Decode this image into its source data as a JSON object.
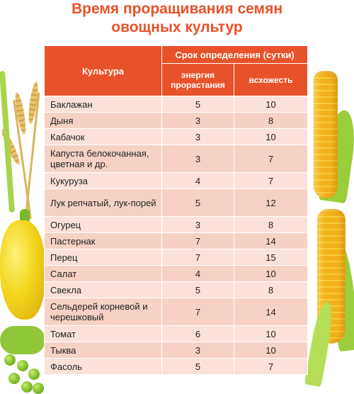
{
  "title": {
    "line1": "Время проращивания семян",
    "line2": "овощных культур"
  },
  "table": {
    "col_culture": "Культура",
    "col_period": "Срок определения (сутки)",
    "col_energy": "энергия прорастания",
    "col_germination": "всхожесть",
    "rows": [
      {
        "name": "Баклажан",
        "energy": "5",
        "germination": "10"
      },
      {
        "name": "Дыня",
        "energy": "3",
        "germination": "8"
      },
      {
        "name": "Кабачок",
        "energy": "3",
        "germination": "10"
      },
      {
        "name": "Капуста белокочанная, цветная и др.",
        "energy": "3",
        "germination": "7"
      },
      {
        "name": "Кукуруза",
        "energy": "4",
        "germination": "7"
      },
      {
        "name": "Лук репчатый, лук-порей",
        "energy": "5",
        "germination": "12"
      },
      {
        "name": "Огурец",
        "energy": "3",
        "germination": "8"
      },
      {
        "name": "Пастернак",
        "energy": "7",
        "germination": "14"
      },
      {
        "name": "Перец",
        "energy": "7",
        "germination": "15"
      },
      {
        "name": "Салат",
        "energy": "4",
        "germination": "10"
      },
      {
        "name": "Свекла",
        "energy": "5",
        "germination": "8"
      },
      {
        "name": "Сельдерей корневой и черешковый",
        "energy": "7",
        "germination": "14"
      },
      {
        "name": "Томат",
        "energy": "6",
        "germination": "10"
      },
      {
        "name": "Тыква",
        "energy": "3",
        "germination": "10"
      },
      {
        "name": "Фасоль",
        "energy": "5",
        "germination": "7"
      }
    ]
  },
  "colors": {
    "accent": "#e8522a",
    "row_bg": "#fbe1da",
    "row_alt_bg": "#f7d1c6"
  },
  "decor": [
    "corn-icon",
    "pepper-icon",
    "wheat-icon",
    "pea-icon"
  ]
}
